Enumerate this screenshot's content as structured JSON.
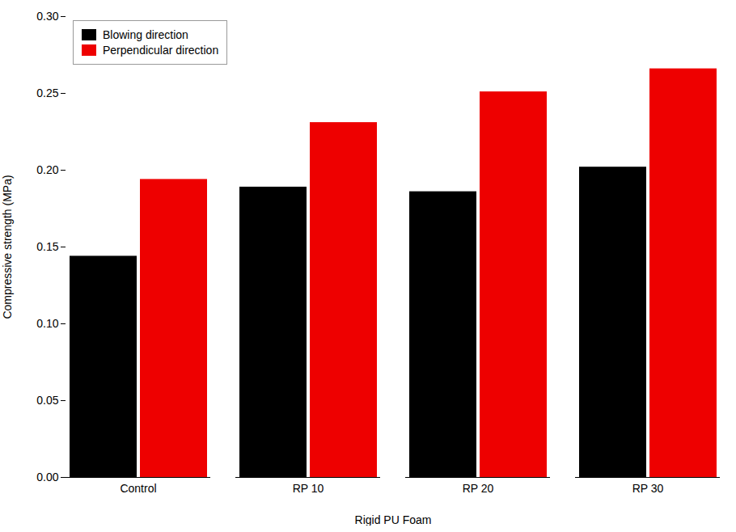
{
  "chart_data": {
    "type": "bar",
    "categories": [
      "Control",
      "RP 10",
      "RP 20",
      "RP 30"
    ],
    "series": [
      {
        "name": "Blowing direction",
        "color": "#000000",
        "values": [
          0.144,
          0.189,
          0.186,
          0.202
        ]
      },
      {
        "name": "Perpendicular direction",
        "color": "#ee0000",
        "values": [
          0.194,
          0.231,
          0.251,
          0.266
        ]
      }
    ],
    "xlabel": "Rigid PU Foam",
    "ylabel": "Compressive strength (MPa)",
    "ylim": [
      0.0,
      0.3
    ],
    "yticks": [
      {
        "value": 0.0,
        "label": "0.00"
      },
      0.05,
      {
        "value": 0.1,
        "label": "0.10"
      },
      0.15,
      {
        "value": 0.2,
        "label": "0.20"
      },
      0.25,
      {
        "value": 0.3,
        "label": "0.30"
      }
    ],
    "legend": "upper left"
  }
}
